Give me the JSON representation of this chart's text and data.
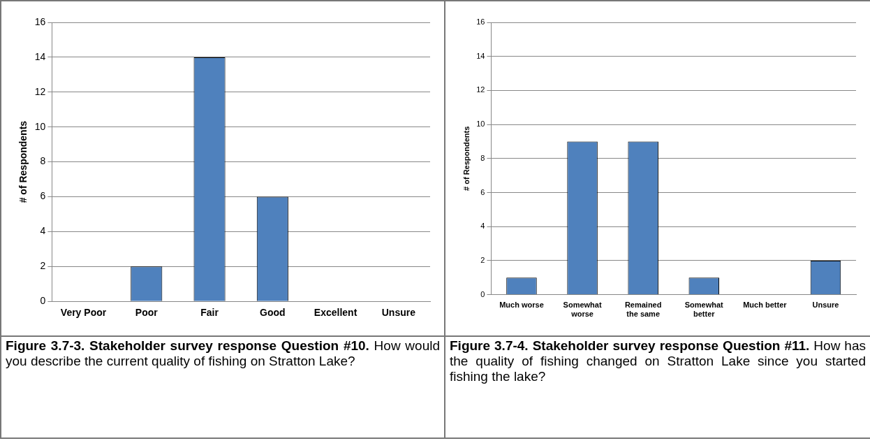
{
  "chart_data": [
    {
      "type": "bar",
      "title": "Figure 3.7-3.  Stakeholder survey response Question #10.",
      "subtitle": "How would you describe the current quality of fishing on Stratton Lake?",
      "ylabel": "# of Respondents",
      "categories": [
        "Very Poor",
        "Poor",
        "Fair",
        "Good",
        "Excellent",
        "Unsure"
      ],
      "values": [
        0,
        2,
        14,
        6,
        0,
        0
      ],
      "color": "#4f81bd",
      "ylim": [
        0,
        16
      ],
      "yticks": [
        0,
        2,
        4,
        6,
        8,
        10,
        12,
        14,
        16
      ],
      "grid": "y",
      "legend": false
    },
    {
      "type": "bar",
      "title": "Figure 3.7-4.  Stakeholder survey response Question #11.",
      "subtitle": "How has the quality of fishing changed on Stratton Lake since you started fishing the lake?",
      "ylabel": "# of Respondents",
      "categories": [
        "Much worse",
        "Somewhat worse",
        "Remained the same",
        "Somewhat better",
        "Much better",
        "Unsure"
      ],
      "values": [
        1,
        9,
        9,
        1,
        0,
        2
      ],
      "color": "#4f81bd",
      "ylim": [
        0,
        16
      ],
      "yticks": [
        0,
        2,
        4,
        6,
        8,
        10,
        12,
        14,
        16
      ],
      "grid": "y",
      "legend": false
    }
  ]
}
